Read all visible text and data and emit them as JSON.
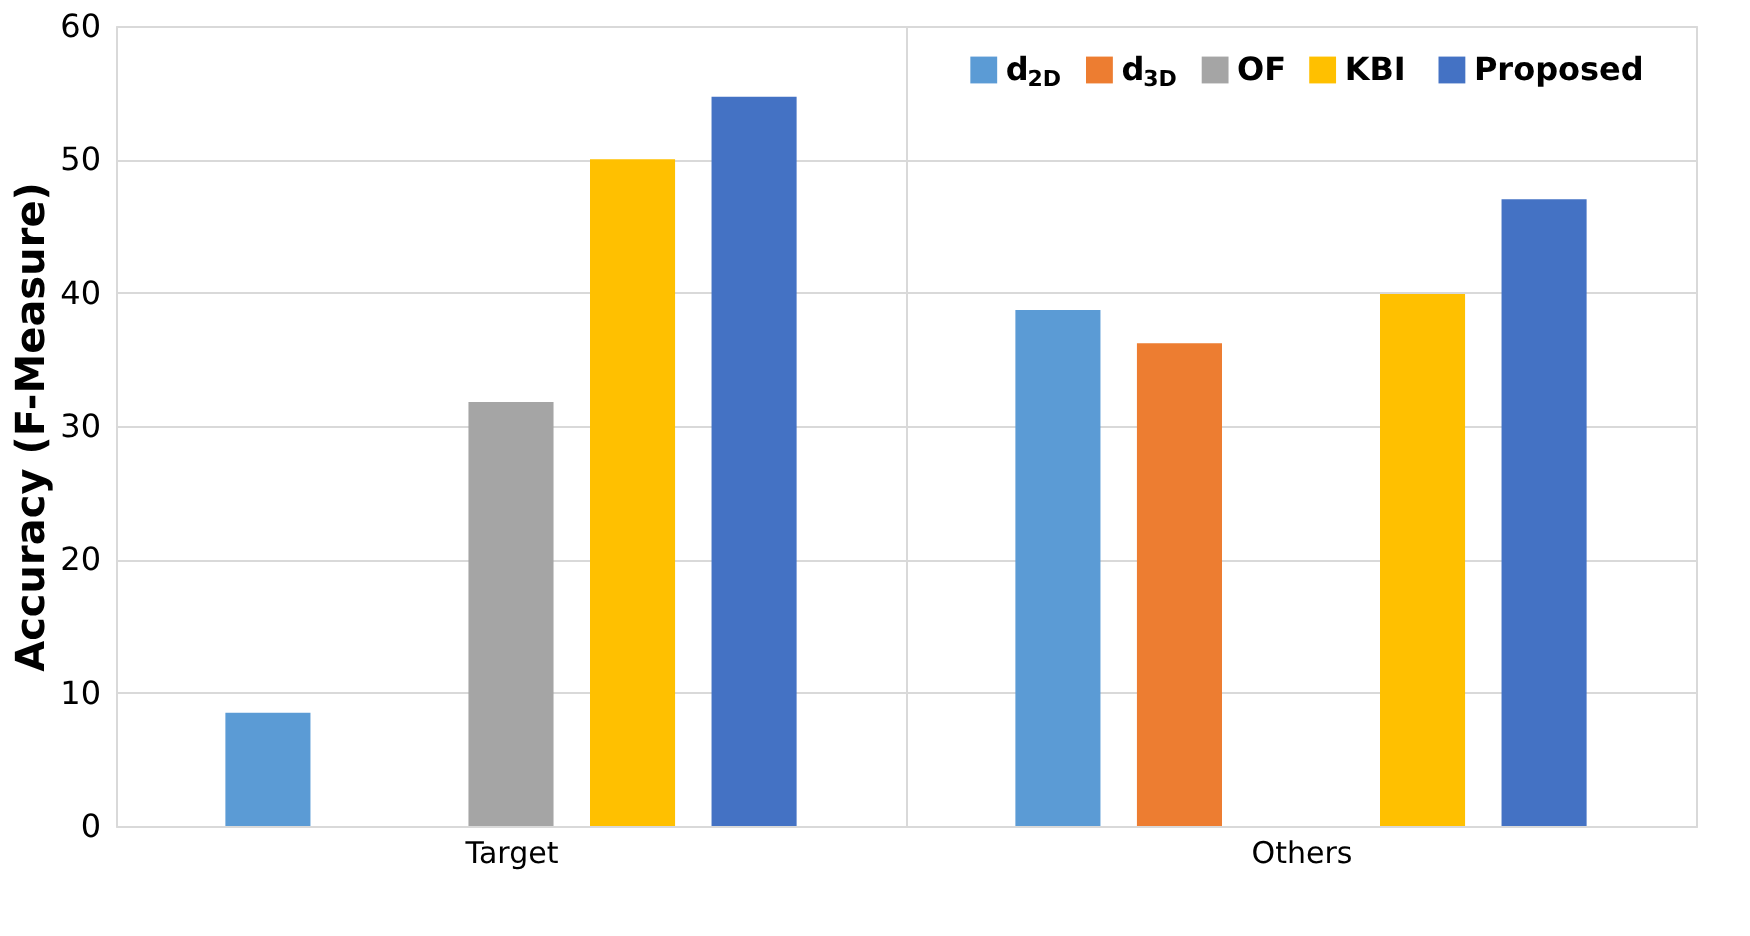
{
  "chart_data": {
    "type": "bar",
    "ylabel": "Accuracy  (F-Measure)",
    "categories": [
      "Target",
      "Others"
    ],
    "series": [
      {
        "name": "d$_{2D}$",
        "color": "#5b9bd5",
        "values": [
          8.5,
          38.7
        ]
      },
      {
        "name": "d$_{3D}$",
        "color": "#ed7d31",
        "values": [
          null,
          36.2
        ]
      },
      {
        "name": "OF",
        "color": "#a5a5a5",
        "values": [
          31.8,
          null
        ]
      },
      {
        "name": "KBI",
        "color": "#ffc000",
        "values": [
          50.0,
          39.9
        ]
      },
      {
        "name": "Proposed",
        "color": "#4472c4",
        "values": [
          54.7,
          47.0
        ]
      }
    ],
    "ylim": [
      0,
      60
    ],
    "yticks": [
      0,
      10,
      20,
      30,
      40,
      50,
      60
    ],
    "grid": "y",
    "legend": "top right"
  }
}
